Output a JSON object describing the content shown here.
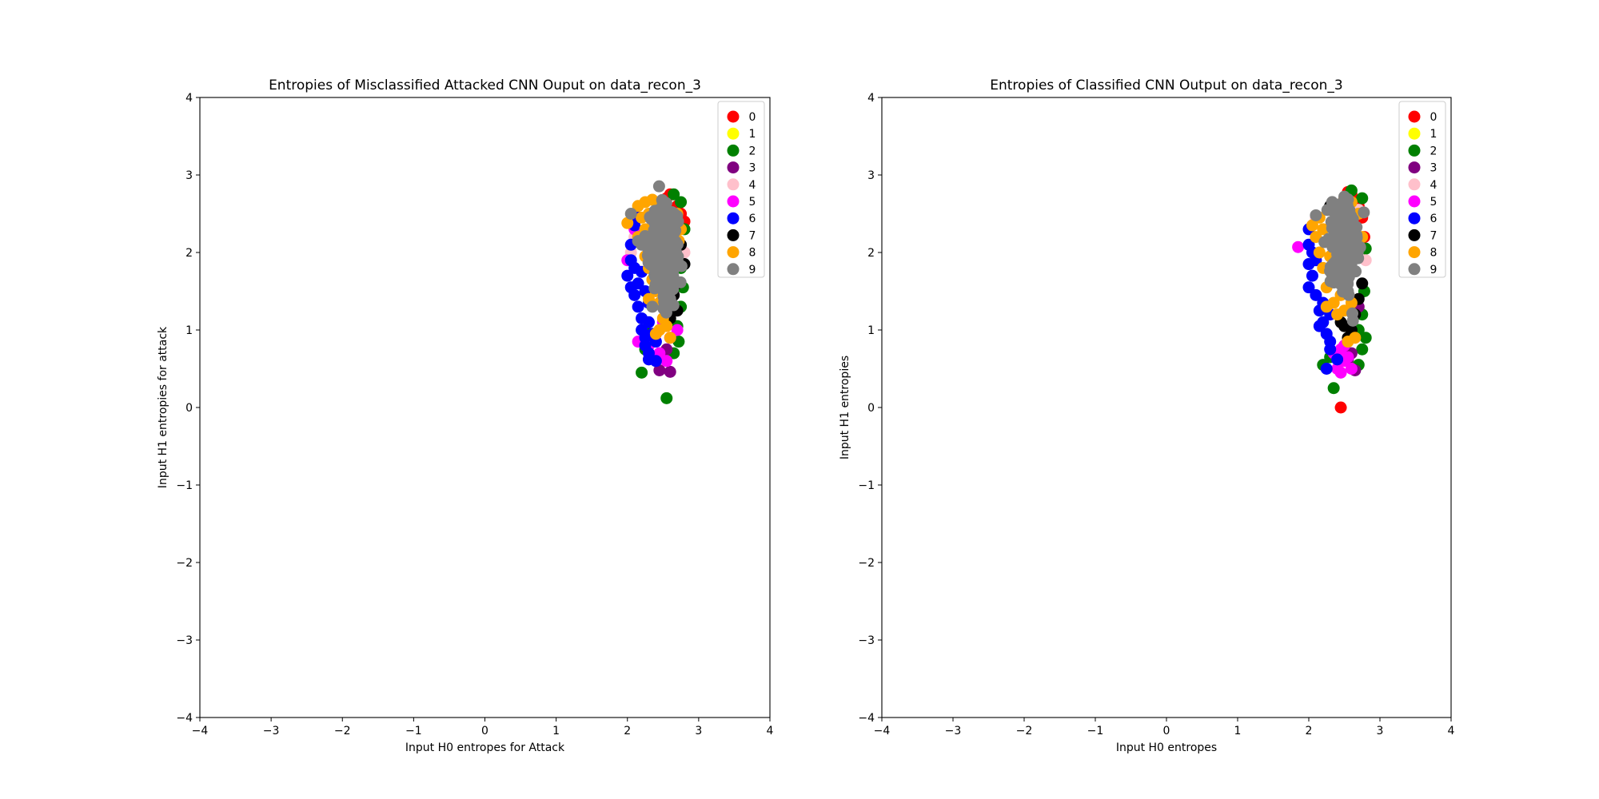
{
  "chart_data": [
    {
      "type": "scatter",
      "title": "Entropies of Misclassified Attacked CNN Ouput on data_recon_3",
      "xlabel": "Input H0 entropes for Attack",
      "ylabel": "Input H1 entropies for attack",
      "xlim": [
        -4,
        4
      ],
      "ylim": [
        -4,
        4
      ],
      "xticks": [
        "−4",
        "−3",
        "−2",
        "−1",
        "0",
        "1",
        "2",
        "3",
        "4"
      ],
      "yticks": [
        "−4",
        "−3",
        "−2",
        "−1",
        "0",
        "1",
        "2",
        "3",
        "4"
      ],
      "grid": false,
      "legend_position": "top-right",
      "series": [
        {
          "name": "0",
          "color": "#ff0000",
          "points": [
            [
              2.6,
              2.75
            ],
            [
              2.7,
              2.6
            ],
            [
              2.8,
              2.4
            ],
            [
              2.55,
              2.7
            ],
            [
              2.75,
              2.5
            ]
          ]
        },
        {
          "name": "1",
          "color": "#ffff00",
          "points": []
        },
        {
          "name": "2",
          "color": "#008000",
          "points": [
            [
              2.65,
              2.75
            ],
            [
              2.75,
              2.65
            ],
            [
              2.8,
              2.3
            ],
            [
              2.75,
              1.8
            ],
            [
              2.78,
              1.55
            ],
            [
              2.75,
              1.3
            ],
            [
              2.7,
              1.05
            ],
            [
              2.72,
              0.85
            ],
            [
              2.65,
              0.7
            ],
            [
              2.2,
              0.45
            ],
            [
              2.55,
              0.12
            ],
            [
              2.3,
              0.95
            ],
            [
              2.25,
              0.75
            ]
          ]
        },
        {
          "name": "3",
          "color": "#800080",
          "points": [
            [
              2.45,
              0.48
            ],
            [
              2.6,
              0.46
            ],
            [
              2.4,
              0.65
            ],
            [
              2.55,
              0.75
            ],
            [
              2.35,
              0.85
            ]
          ]
        },
        {
          "name": "4",
          "color": "#ffc0cb",
          "points": [
            [
              2.05,
              2.0
            ],
            [
              2.1,
              2.2
            ],
            [
              2.8,
              2.0
            ],
            [
              2.6,
              1.3
            ]
          ]
        },
        {
          "name": "5",
          "color": "#ff00ff",
          "points": [
            [
              2.15,
              0.85
            ],
            [
              2.3,
              0.8
            ],
            [
              2.45,
              0.7
            ],
            [
              2.55,
              0.6
            ],
            [
              2.6,
              0.9
            ],
            [
              2.7,
              1.0
            ],
            [
              2.0,
              1.9
            ],
            [
              2.1,
              2.3
            ],
            [
              2.4,
              0.95
            ],
            [
              2.5,
              1.1
            ]
          ]
        },
        {
          "name": "6",
          "color": "#0000ff",
          "points": [
            [
              2.05,
              2.1
            ],
            [
              2.05,
              1.9
            ],
            [
              2.0,
              1.7
            ],
            [
              2.05,
              1.55
            ],
            [
              2.1,
              1.45
            ],
            [
              2.15,
              1.3
            ],
            [
              2.2,
              1.15
            ],
            [
              2.2,
              1.0
            ],
            [
              2.25,
              0.9
            ],
            [
              2.25,
              0.8
            ],
            [
              2.3,
              0.7
            ],
            [
              2.3,
              0.62
            ],
            [
              2.4,
              0.6
            ],
            [
              2.15,
              1.6
            ],
            [
              2.1,
              1.8
            ],
            [
              2.2,
              1.75
            ],
            [
              2.25,
              1.5
            ],
            [
              2.3,
              1.35
            ],
            [
              2.3,
              1.1
            ],
            [
              2.35,
              0.95
            ],
            [
              2.4,
              0.85
            ],
            [
              2.1,
              2.35
            ],
            [
              2.15,
              2.45
            ]
          ]
        },
        {
          "name": "7",
          "color": "#000000",
          "points": [
            [
              2.8,
              1.85
            ],
            [
              2.75,
              2.1
            ],
            [
              2.7,
              1.6
            ],
            [
              2.65,
              1.45
            ],
            [
              2.7,
              1.25
            ],
            [
              2.6,
              1.15
            ],
            [
              2.65,
              1.95
            ]
          ]
        },
        {
          "name": "8",
          "color": "#ffa500",
          "points": [
            [
              2.0,
              2.38
            ],
            [
              2.15,
              2.6
            ],
            [
              2.25,
              2.65
            ],
            [
              2.35,
              2.68
            ],
            [
              2.45,
              2.6
            ],
            [
              2.2,
              2.45
            ],
            [
              2.25,
              2.3
            ],
            [
              2.15,
              2.2
            ],
            [
              2.3,
              2.1
            ],
            [
              2.25,
              1.95
            ],
            [
              2.3,
              1.8
            ],
            [
              2.35,
              1.65
            ],
            [
              2.4,
              1.5
            ],
            [
              2.3,
              1.4
            ],
            [
              2.45,
              1.35
            ],
            [
              2.55,
              1.3
            ],
            [
              2.5,
              1.15
            ],
            [
              2.45,
              1.0
            ],
            [
              2.6,
              0.9
            ],
            [
              2.4,
              0.95
            ],
            [
              2.7,
              2.5
            ],
            [
              2.75,
              2.3
            ],
            [
              2.72,
              2.15
            ],
            [
              2.4,
              2.0
            ],
            [
              2.5,
              1.7
            ],
            [
              2.6,
              1.5
            ],
            [
              2.3,
              2.5
            ],
            [
              2.55,
              1.05
            ]
          ]
        },
        {
          "name": "9",
          "color": "#808080",
          "points": [
            [
              2.05,
              2.5
            ],
            [
              2.35,
              1.3
            ],
            [
              2.6,
              1.4
            ],
            [
              2.2,
              2.1
            ],
            [
              2.65,
              2.0
            ]
          ]
        }
      ],
      "dense_cloud": {
        "series": "9",
        "color": "#808080",
        "center": [
          2.5,
          2.05
        ],
        "spread": [
          0.1,
          0.27
        ]
      }
    },
    {
      "type": "scatter",
      "title": "Entropies of Classified CNN Output on data_recon_3",
      "xlabel": "Input H0 entropes",
      "ylabel": "Input H1 entropies",
      "xlim": [
        -4,
        4
      ],
      "ylim": [
        -4,
        4
      ],
      "xticks": [
        "−4",
        "−3",
        "−2",
        "−1",
        "0",
        "1",
        "2",
        "3",
        "4"
      ],
      "yticks": [
        "−4",
        "−3",
        "−2",
        "−1",
        "0",
        "1",
        "2",
        "3",
        "4"
      ],
      "grid": false,
      "legend_position": "top-right",
      "series": [
        {
          "name": "0",
          "color": "#ff0000",
          "points": [
            [
              2.45,
              0.0
            ],
            [
              2.55,
              2.78
            ],
            [
              2.7,
              2.6
            ],
            [
              2.75,
              2.45
            ],
            [
              2.6,
              2.75
            ],
            [
              2.78,
              2.2
            ]
          ]
        },
        {
          "name": "1",
          "color": "#ffff00",
          "points": []
        },
        {
          "name": "2",
          "color": "#008000",
          "points": [
            [
              2.75,
              2.7
            ],
            [
              2.8,
              2.05
            ],
            [
              2.78,
              1.5
            ],
            [
              2.75,
              1.2
            ],
            [
              2.7,
              1.0
            ],
            [
              2.75,
              0.75
            ],
            [
              2.7,
              0.55
            ],
            [
              2.2,
              0.55
            ],
            [
              2.35,
              0.25
            ],
            [
              2.3,
              0.65
            ],
            [
              2.8,
              0.9
            ],
            [
              2.6,
              2.8
            ]
          ]
        },
        {
          "name": "3",
          "color": "#800080",
          "points": [
            [
              2.65,
              0.48
            ],
            [
              2.55,
              0.62
            ],
            [
              2.7,
              1.3
            ],
            [
              2.6,
              0.7
            ]
          ]
        },
        {
          "name": "4",
          "color": "#ffc0cb",
          "points": [
            [
              2.1,
              2.45
            ],
            [
              2.7,
              2.55
            ],
            [
              2.8,
              1.9
            ]
          ]
        },
        {
          "name": "5",
          "color": "#ff00ff",
          "points": [
            [
              1.85,
              2.07
            ],
            [
              2.4,
              0.5
            ],
            [
              2.45,
              0.45
            ],
            [
              2.5,
              0.6
            ],
            [
              2.55,
              0.65
            ],
            [
              2.6,
              0.5
            ],
            [
              2.45,
              0.75
            ],
            [
              2.5,
              0.8
            ],
            [
              2.35,
              0.7
            ]
          ]
        },
        {
          "name": "6",
          "color": "#0000ff",
          "points": [
            [
              2.0,
              2.3
            ],
            [
              2.0,
              2.1
            ],
            [
              2.0,
              1.85
            ],
            [
              2.0,
              1.55
            ],
            [
              2.05,
              1.7
            ],
            [
              2.1,
              1.45
            ],
            [
              2.15,
              1.25
            ],
            [
              2.2,
              1.1
            ],
            [
              2.25,
              0.95
            ],
            [
              2.3,
              0.85
            ],
            [
              2.3,
              0.75
            ],
            [
              2.25,
              0.5
            ],
            [
              2.4,
              0.62
            ],
            [
              2.15,
              1.05
            ],
            [
              2.1,
              1.9
            ],
            [
              2.05,
              2.0
            ],
            [
              2.2,
              1.35
            ],
            [
              2.3,
              1.2
            ]
          ]
        },
        {
          "name": "7",
          "color": "#000000",
          "points": [
            [
              2.3,
              2.6
            ],
            [
              2.5,
              1.05
            ],
            [
              2.6,
              1.0
            ],
            [
              2.65,
              1.2
            ],
            [
              2.7,
              1.4
            ],
            [
              2.75,
              1.6
            ],
            [
              2.45,
              1.1
            ],
            [
              2.55,
              0.9
            ]
          ]
        },
        {
          "name": "8",
          "color": "#ffa500",
          "points": [
            [
              2.15,
              2.45
            ],
            [
              2.05,
              2.35
            ],
            [
              2.1,
              2.2
            ],
            [
              2.15,
              2.0
            ],
            [
              2.2,
              1.8
            ],
            [
              2.25,
              1.55
            ],
            [
              2.25,
              1.3
            ],
            [
              2.35,
              1.35
            ],
            [
              2.4,
              1.2
            ],
            [
              2.5,
              1.25
            ],
            [
              2.65,
              0.9
            ],
            [
              2.55,
              0.85
            ],
            [
              2.45,
              1.45
            ],
            [
              2.7,
              2.5
            ],
            [
              2.6,
              2.65
            ],
            [
              2.5,
              2.7
            ],
            [
              2.35,
              2.55
            ],
            [
              2.2,
              2.3
            ],
            [
              2.3,
              1.95
            ],
            [
              2.45,
              1.6
            ],
            [
              2.6,
              1.35
            ],
            [
              2.75,
              2.2
            ]
          ]
        },
        {
          "name": "9",
          "color": "#808080",
          "points": [
            [
              2.1,
              2.48
            ],
            [
              2.62,
              1.12
            ],
            [
              2.5,
              2.72
            ],
            [
              2.55,
              1.5
            ]
          ]
        }
      ],
      "dense_cloud": {
        "series": "9",
        "color": "#808080",
        "center": [
          2.5,
          2.1
        ],
        "spread": [
          0.09,
          0.25
        ]
      }
    }
  ]
}
